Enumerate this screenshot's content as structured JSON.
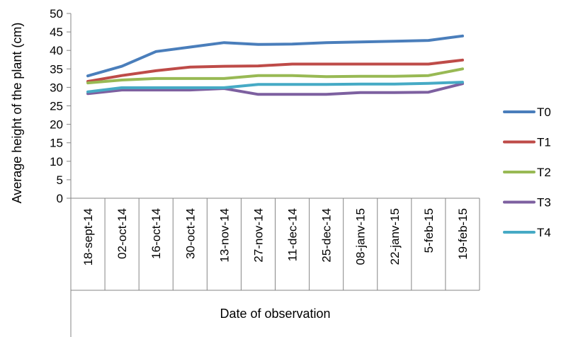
{
  "chart_data": {
    "type": "line",
    "title": "",
    "xlabel": "Date of observation",
    "ylabel": "Average height of the plant (cm)",
    "ylim": [
      0,
      50
    ],
    "yticks": [
      0,
      5,
      10,
      15,
      20,
      25,
      30,
      35,
      40,
      45,
      50
    ],
    "ytick_labels": [
      "0",
      "5",
      "10",
      "15",
      "20",
      "25",
      "30",
      "35",
      "40",
      "45",
      "50"
    ],
    "grid": false,
    "legend_position": "right",
    "categories": [
      "18-sept-14",
      "02-oct-14",
      "16-oct-14",
      "30-oct-14",
      "13-nov-14",
      "27-nov-14",
      "11-dec-14",
      "25-dec-14",
      "08-janv-15",
      "22-janv-15",
      "5-feb-15",
      "19-feb-15"
    ],
    "series": [
      {
        "name": "T0",
        "color": "#4a7ebb",
        "values": [
          33.1,
          35.7,
          39.7,
          40.9,
          42.1,
          41.6,
          41.7,
          42.1,
          42.3,
          42.5,
          42.7,
          43.9
        ]
      },
      {
        "name": "T1",
        "color": "#be4b48",
        "values": [
          31.6,
          33.2,
          34.5,
          35.5,
          35.7,
          35.8,
          36.3,
          36.3,
          36.3,
          36.3,
          36.3,
          37.4
        ]
      },
      {
        "name": "T2",
        "color": "#98b954",
        "values": [
          31.2,
          32.0,
          32.4,
          32.4,
          32.4,
          33.2,
          33.2,
          32.9,
          33.0,
          33.0,
          33.2,
          35.0
        ]
      },
      {
        "name": "T3",
        "color": "#7d60a0",
        "values": [
          28.3,
          29.3,
          29.3,
          29.3,
          29.7,
          28.1,
          28.1,
          28.1,
          28.6,
          28.6,
          28.7,
          31.0
        ]
      },
      {
        "name": "T4",
        "color": "#46aac5",
        "values": [
          28.8,
          29.9,
          29.9,
          29.9,
          29.9,
          30.8,
          30.8,
          30.8,
          30.9,
          30.9,
          31.1,
          31.4
        ]
      }
    ]
  }
}
